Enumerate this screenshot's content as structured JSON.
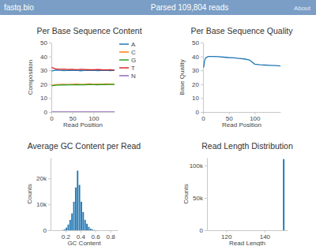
{
  "header": {
    "brand": "fastq.bio",
    "status": "Parsed 109,804 reads",
    "link": "About"
  },
  "chart_data": [
    {
      "type": "line",
      "title": "Per Base Sequence Content",
      "x_label": "Read Position",
      "y_label": "Composition",
      "xlim": [
        0,
        150
      ],
      "ylim": [
        0,
        50
      ],
      "xticks": [
        0,
        50,
        100
      ],
      "yticks": [
        0,
        10,
        20,
        30,
        40,
        50
      ],
      "grid": false,
      "legend": "right",
      "x": [
        1,
        10,
        20,
        30,
        40,
        50,
        60,
        70,
        80,
        90,
        100,
        110,
        120,
        130,
        140,
        150
      ],
      "series": [
        {
          "name": "A",
          "color": "#1f77b4",
          "values": [
            29.5,
            30.2,
            30.0,
            29.8,
            30.1,
            29.9,
            30.0,
            29.7,
            30.0,
            29.9,
            30.1,
            29.8,
            29.9,
            30.0,
            29.8,
            30.1
          ]
        },
        {
          "name": "C",
          "color": "#ff7f0e",
          "values": [
            19.2,
            19.6,
            19.8,
            20.0,
            19.7,
            19.9,
            20.1,
            19.8,
            20.0,
            20.2,
            19.9,
            20.1,
            20.0,
            20.2,
            20.1,
            20.0
          ]
        },
        {
          "name": "G",
          "color": "#2ca02c",
          "values": [
            18.8,
            19.3,
            19.5,
            19.4,
            19.6,
            19.5,
            19.7,
            19.6,
            19.5,
            19.8,
            19.7,
            19.6,
            19.8,
            19.7,
            19.9,
            19.8
          ]
        },
        {
          "name": "T",
          "color": "#d62728",
          "values": [
            32.0,
            31.0,
            30.8,
            30.9,
            30.6,
            30.8,
            30.5,
            30.7,
            30.6,
            30.4,
            30.5,
            30.6,
            30.4,
            30.3,
            30.5,
            30.2
          ]
        },
        {
          "name": "N",
          "color": "#9467bd",
          "values": [
            0,
            0,
            0,
            0,
            0,
            0,
            0,
            0,
            0,
            0,
            0,
            0,
            0,
            0,
            0,
            0
          ]
        }
      ]
    },
    {
      "type": "line",
      "title": "Per Base Sequence Quality",
      "x_label": "Read Position",
      "y_label": "Base Quality",
      "xlim": [
        0,
        150
      ],
      "ylim": [
        0,
        50
      ],
      "xticks": [
        0,
        50,
        100
      ],
      "yticks": [
        0,
        10,
        20,
        30,
        40,
        50
      ],
      "grid": false,
      "x": [
        1,
        2,
        3,
        5,
        10,
        20,
        30,
        40,
        50,
        60,
        70,
        80,
        90,
        100,
        110,
        120,
        130,
        140,
        150
      ],
      "series": [
        {
          "name": "Quality",
          "color": "#1f77b4",
          "values": [
            32,
            34,
            37,
            39,
            40,
            40,
            39.8,
            39.5,
            39.2,
            39,
            38.6,
            38.2,
            37.5,
            34.5,
            34,
            33.8,
            33.6,
            33.4,
            33.2
          ]
        }
      ]
    },
    {
      "type": "histogram",
      "title": "Average GC Content per Read",
      "x_label": "GC Content",
      "y_label": "Counts",
      "xlim": [
        0,
        0.9
      ],
      "ylim": [
        0,
        28000
      ],
      "xticks": [
        0.2,
        0.4,
        0.6,
        0.8
      ],
      "yticks": [
        0,
        {
          "value": 10000,
          "label": "10k"
        },
        {
          "value": 20000,
          "label": "20k"
        }
      ],
      "grid": false,
      "color": "#1f77b4",
      "bins": [
        0.15,
        0.175,
        0.2,
        0.225,
        0.25,
        0.275,
        0.3,
        0.325,
        0.35,
        0.375,
        0.4,
        0.425,
        0.45,
        0.475,
        0.5,
        0.525,
        0.55,
        0.575,
        0.6
      ],
      "counts": [
        100,
        300,
        1000,
        2200,
        4000,
        6500,
        11000,
        16500,
        23000,
        17500,
        11000,
        7000,
        4000,
        2500,
        1300,
        600,
        250,
        100
      ]
    },
    {
      "type": "histogram",
      "title": "Read Length Distribution",
      "x_label": "Read Length",
      "y_label": "Counts",
      "xlim": [
        110,
        152
      ],
      "ylim": [
        0,
        112000
      ],
      "xticks": [
        120,
        140
      ],
      "yticks": [
        0,
        {
          "value": 50000,
          "label": "50k"
        },
        {
          "value": 100000,
          "label": "100k"
        }
      ],
      "grid": false,
      "color": "#1f77b4",
      "bins": [
        149.5,
        150.5
      ],
      "counts": [
        109804
      ]
    }
  ]
}
